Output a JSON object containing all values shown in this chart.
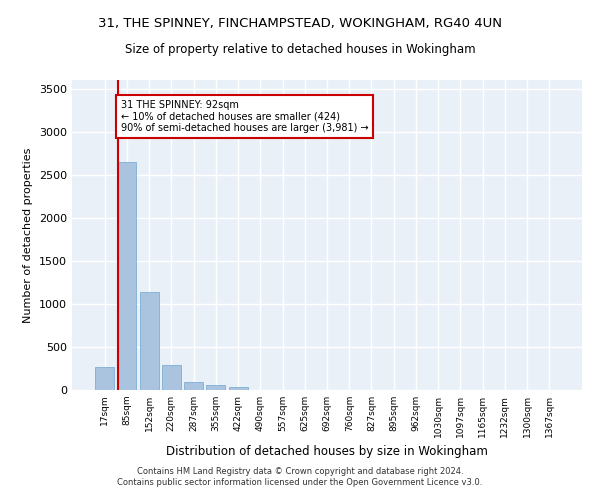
{
  "title": "31, THE SPINNEY, FINCHAMPSTEAD, WOKINGHAM, RG40 4UN",
  "subtitle": "Size of property relative to detached houses in Wokingham",
  "xlabel": "Distribution of detached houses by size in Wokingham",
  "ylabel": "Number of detached properties",
  "bar_labels": [
    "17sqm",
    "85sqm",
    "152sqm",
    "220sqm",
    "287sqm",
    "355sqm",
    "422sqm",
    "490sqm",
    "557sqm",
    "625sqm",
    "692sqm",
    "760sqm",
    "827sqm",
    "895sqm",
    "962sqm",
    "1030sqm",
    "1097sqm",
    "1165sqm",
    "1232sqm",
    "1300sqm",
    "1367sqm"
  ],
  "bar_values": [
    270,
    2650,
    1140,
    285,
    90,
    55,
    35,
    0,
    0,
    0,
    0,
    0,
    0,
    0,
    0,
    0,
    0,
    0,
    0,
    0,
    0
  ],
  "bar_color": "#aac4e0",
  "bar_edge_color": "#6ea8d0",
  "marker_label": "31 THE SPINNEY: 92sqm",
  "annotation_line1": "← 10% of detached houses are smaller (424)",
  "annotation_line2": "90% of semi-detached houses are larger (3,981) →",
  "marker_color": "#cc0000",
  "ylim": [
    0,
    3600
  ],
  "yticks": [
    0,
    500,
    1000,
    1500,
    2000,
    2500,
    3000,
    3500
  ],
  "bg_color": "#eaf0f8",
  "grid_color": "#ffffff",
  "footer1": "Contains HM Land Registry data © Crown copyright and database right 2024.",
  "footer2": "Contains public sector information licensed under the Open Government Licence v3.0."
}
